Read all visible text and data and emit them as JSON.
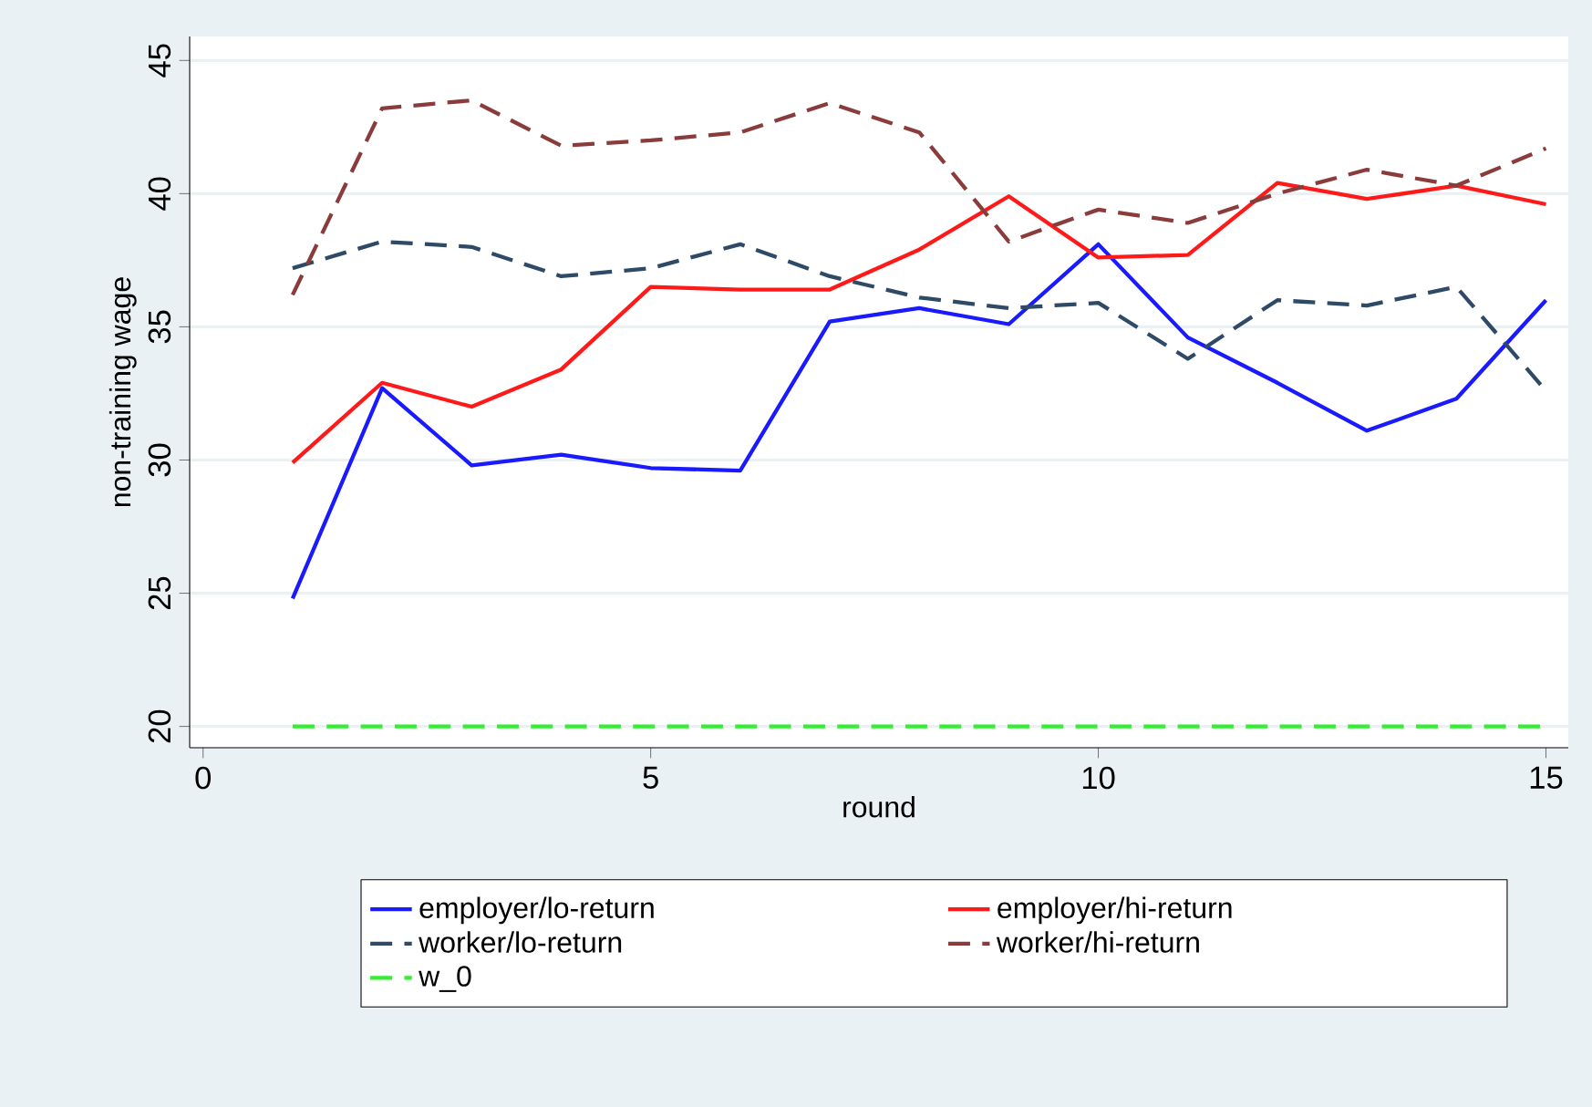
{
  "chart_data": {
    "type": "line",
    "xlabel": "round",
    "ylabel": "non-training wage",
    "x": [
      1,
      2,
      3,
      4,
      5,
      6,
      7,
      8,
      9,
      10,
      11,
      12,
      13,
      14,
      15
    ],
    "xlim": [
      -0.15,
      15.25
    ],
    "ylim": [
      19.2,
      45.9
    ],
    "xticks": [
      0,
      5,
      10,
      15
    ],
    "yticks": [
      20,
      25,
      30,
      35,
      40,
      45
    ],
    "grid": "y",
    "legend": "bottom",
    "marker": "none",
    "series": [
      {
        "name": "employer/lo-return",
        "color": "#1a1aff",
        "line_style": "solid",
        "values": [
          24.8,
          32.7,
          29.8,
          30.2,
          29.7,
          29.6,
          35.2,
          35.7,
          35.1,
          38.1,
          34.6,
          32.9,
          31.1,
          32.3,
          36.0
        ]
      },
      {
        "name": "employer/hi-return",
        "color": "#ff1a1a",
        "line_style": "solid",
        "values": [
          29.9,
          32.9,
          32.0,
          33.4,
          36.5,
          36.4,
          36.4,
          37.9,
          39.9,
          37.6,
          37.7,
          40.4,
          39.8,
          40.3,
          39.6
        ]
      },
      {
        "name": "worker/lo-return",
        "color": "#2e4a66",
        "line_style": "dashed",
        "values": [
          37.2,
          38.2,
          38.0,
          36.9,
          37.2,
          38.1,
          36.9,
          36.1,
          35.7,
          35.9,
          33.8,
          36.0,
          35.8,
          36.5,
          32.6
        ]
      },
      {
        "name": "worker/hi-return",
        "color": "#8a3c3c",
        "line_style": "dashed",
        "values": [
          36.2,
          43.2,
          43.5,
          41.8,
          42.0,
          42.3,
          43.4,
          42.3,
          38.2,
          39.4,
          38.9,
          40.0,
          40.9,
          40.3,
          41.7
        ]
      },
      {
        "name": "w_0",
        "color": "#33ee33",
        "line_style": "dashed",
        "values": [
          20,
          20,
          20,
          20,
          20,
          20,
          20,
          20,
          20,
          20,
          20,
          20,
          20,
          20,
          20
        ]
      }
    ]
  }
}
